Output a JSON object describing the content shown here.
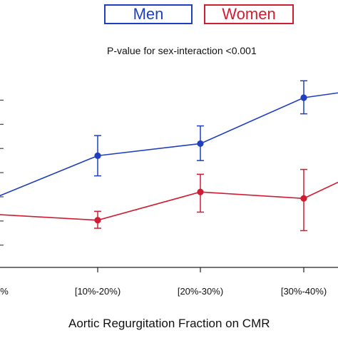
{
  "chart_data": {
    "type": "line",
    "categories": [
      "%",
      "[10%-20%)",
      "[20%-30%)",
      "[30%-40%)",
      ""
    ],
    "annotation": "P-value for sex-interaction <0.001",
    "xlabel": "Aortic Regurgitation Fraction on CMR",
    "ylabel": "",
    "legend_position": "top",
    "grid": false,
    "series": [
      {
        "name": "Men",
        "color": "#1f3fbf",
        "values": [
          0.0,
          0.255,
          0.33,
          0.615,
          0.645
        ],
        "ci_low": [
          null,
          0.13,
          0.225,
          0.515,
          null
        ],
        "ci_high": [
          null,
          0.38,
          0.44,
          0.72,
          null
        ]
      },
      {
        "name": "Women",
        "color": "#cf1e33",
        "values": [
          -0.11,
          -0.145,
          0.03,
          -0.01,
          0.09
        ],
        "ci_low": [
          null,
          -0.195,
          -0.095,
          -0.21,
          null
        ],
        "ci_high": [
          null,
          -0.09,
          0.14,
          0.17,
          null
        ]
      }
    ],
    "y_ticks": [
      -0.3,
      -0.15,
      0.0,
      0.15,
      0.3,
      0.45,
      0.6
    ]
  },
  "legend": {
    "men": "Men",
    "women": "Women"
  }
}
